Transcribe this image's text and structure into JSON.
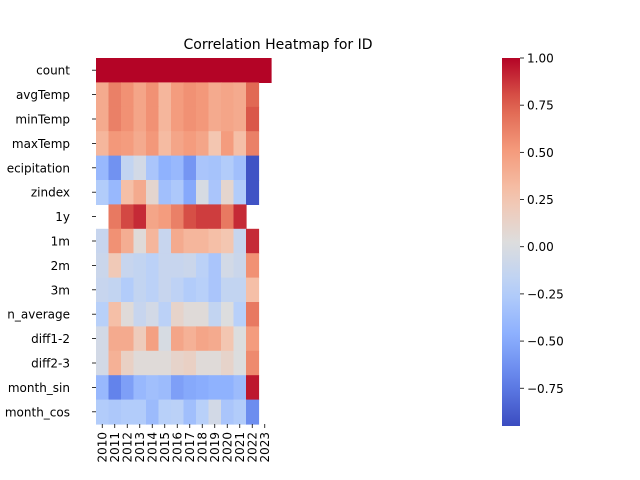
{
  "chart_data": {
    "type": "heatmap",
    "title": "Correlation Heatmap for ID",
    "x": [
      "2010",
      "2011",
      "2012",
      "2013",
      "2014",
      "2015",
      "2016",
      "2017",
      "2018",
      "2019",
      "2020",
      "2021",
      "2022",
      "2023"
    ],
    "y": [
      "count",
      "avgTemp",
      "minTemp",
      "maxTemp",
      "precipitation",
      "zindex",
      "1y",
      "1m",
      "2m",
      "3m",
      "rolling_mean_average",
      "diff1-2",
      "diff2-3",
      "month_sin",
      "month_cos"
    ],
    "y_tick_labels": [
      "count",
      "avgTemp",
      "minTemp",
      "maxTemp",
      "ecipitation",
      "zindex",
      "1y",
      "1m",
      "2m",
      "3m",
      "n_average",
      "diff1-2",
      "diff2-3",
      "month_sin",
      "month_cos"
    ],
    "values": [
      [
        1.0,
        1.0,
        1.0,
        1.0,
        1.0,
        1.0,
        1.0,
        1.0,
        1.0,
        1.0,
        1.0,
        1.0,
        1.0,
        1.0
      ],
      [
        0.42,
        0.62,
        0.55,
        0.45,
        0.55,
        0.35,
        0.5,
        0.55,
        0.52,
        0.42,
        0.45,
        0.42,
        0.72,
        null
      ],
      [
        0.42,
        0.62,
        0.55,
        0.45,
        0.55,
        0.35,
        0.5,
        0.55,
        0.52,
        0.42,
        0.45,
        0.42,
        0.78,
        null
      ],
      [
        0.35,
        0.52,
        0.5,
        0.42,
        0.52,
        0.32,
        0.45,
        0.5,
        0.45,
        0.25,
        0.5,
        0.3,
        0.62,
        null
      ],
      [
        -0.4,
        -0.62,
        -0.15,
        -0.05,
        -0.3,
        -0.45,
        -0.4,
        -0.6,
        -0.3,
        -0.32,
        -0.25,
        -0.35,
        -0.92,
        null
      ],
      [
        -0.25,
        -0.4,
        0.3,
        0.42,
        0.1,
        -0.35,
        -0.28,
        -0.5,
        -0.02,
        -0.3,
        0.1,
        -0.25,
        -0.92,
        null
      ],
      [
        null,
        0.65,
        0.82,
        0.9,
        0.45,
        0.5,
        0.62,
        0.8,
        0.85,
        0.85,
        0.65,
        0.9,
        null,
        null
      ],
      [
        -0.12,
        0.55,
        0.4,
        0.05,
        0.35,
        -0.12,
        0.42,
        0.35,
        0.35,
        0.3,
        0.25,
        -0.12,
        0.9,
        null
      ],
      [
        -0.1,
        0.22,
        -0.12,
        -0.15,
        -0.2,
        -0.12,
        -0.12,
        -0.1,
        -0.2,
        -0.3,
        -0.05,
        -0.1,
        0.55,
        null
      ],
      [
        -0.12,
        -0.15,
        -0.25,
        -0.15,
        -0.2,
        -0.12,
        -0.18,
        -0.25,
        -0.22,
        -0.3,
        -0.15,
        -0.15,
        0.3,
        null
      ],
      [
        -0.22,
        0.3,
        0.05,
        -0.12,
        -0.05,
        -0.2,
        0.12,
        0.05,
        0.05,
        -0.15,
        0.02,
        -0.22,
        0.65,
        null
      ],
      [
        -0.05,
        0.42,
        0.42,
        0.2,
        0.48,
        -0.02,
        0.45,
        0.38,
        0.45,
        0.42,
        0.25,
        0.02,
        0.5,
        null
      ],
      [
        -0.05,
        0.38,
        0.15,
        0.05,
        0.05,
        0.05,
        0.12,
        0.15,
        0.05,
        0.05,
        0.12,
        0.02,
        0.58,
        null
      ],
      [
        -0.4,
        -0.7,
        -0.55,
        -0.4,
        -0.35,
        -0.38,
        -0.55,
        -0.5,
        -0.48,
        -0.45,
        -0.45,
        -0.38,
        0.95,
        null
      ],
      [
        -0.25,
        -0.28,
        -0.25,
        -0.25,
        -0.38,
        -0.22,
        -0.2,
        -0.35,
        -0.22,
        -0.05,
        -0.3,
        -0.25,
        -0.65,
        null
      ]
    ],
    "colormap": "coolwarm",
    "vmin": -0.95,
    "vmax": 1.0,
    "colorbar_ticks": [
      -0.75,
      -0.5,
      -0.25,
      0.0,
      0.25,
      0.5,
      0.75,
      1.0
    ],
    "colorbar_tick_labels": [
      "−0.75",
      "−0.50",
      "−0.25",
      "0.00",
      "0.25",
      "0.50",
      "0.75",
      "1.00"
    ],
    "grid": false,
    "xlabel": "",
    "ylabel": ""
  }
}
